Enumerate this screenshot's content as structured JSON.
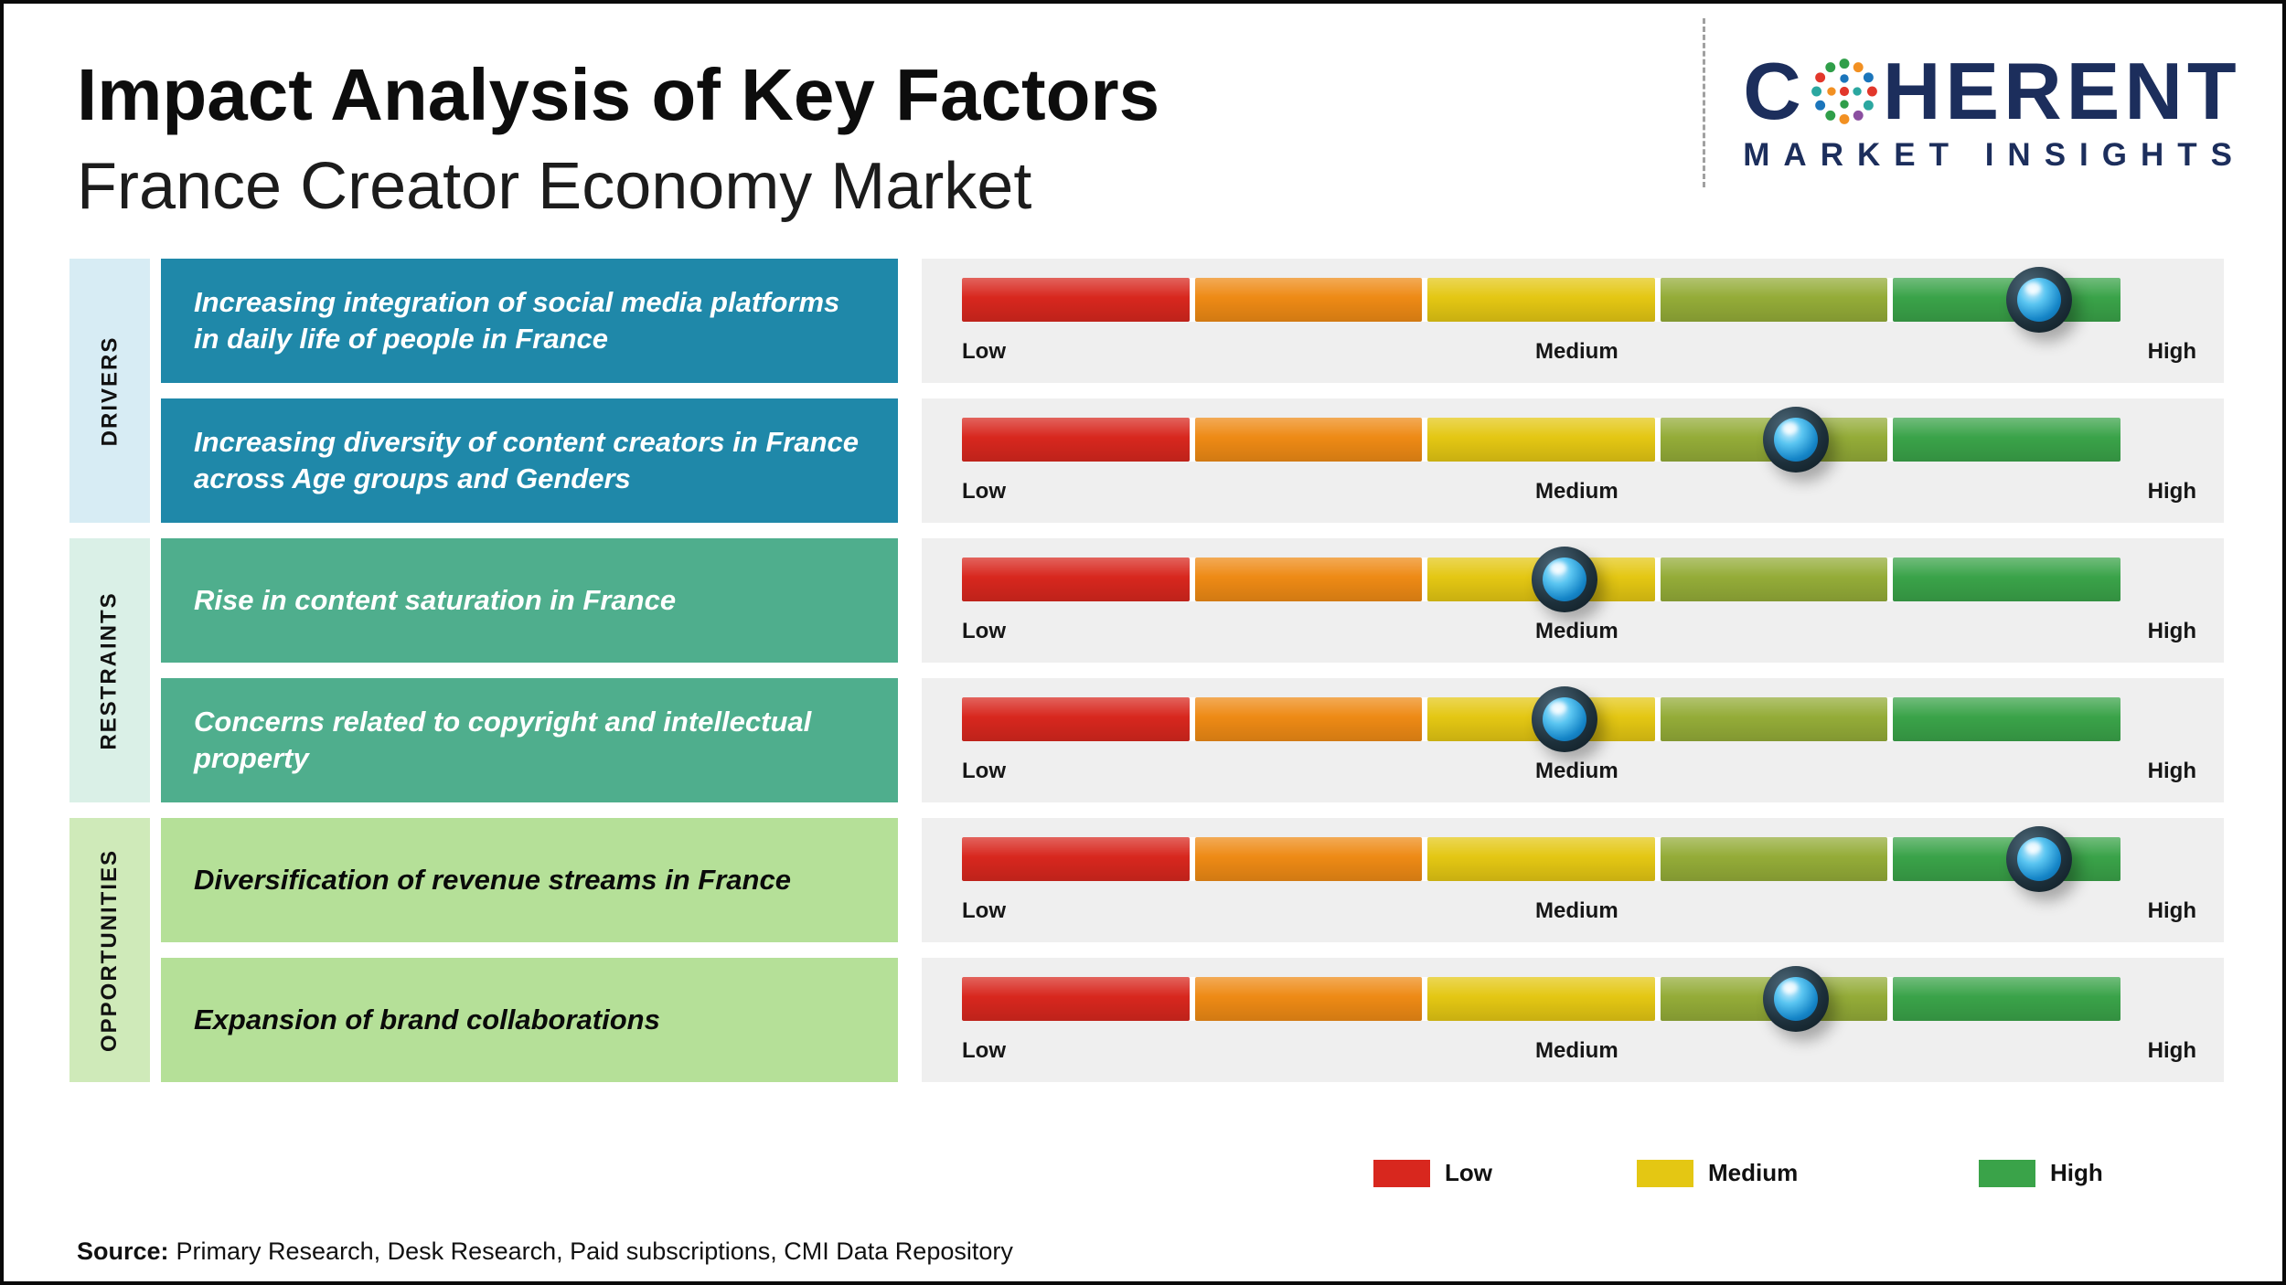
{
  "header": {
    "title": "Impact Analysis of Key Factors",
    "subtitle": "France Creator Economy Market"
  },
  "logo": {
    "prefix": "C",
    "suffix": "HERENT",
    "line2": "MARKET INSIGHTS",
    "brand_color": "#1c2e5c"
  },
  "groups": [
    {
      "label": "DRIVERS"
    },
    {
      "label": "RESTRAINTS"
    },
    {
      "label": "OPPORTUNITIES"
    }
  ],
  "rows": [
    {
      "group": "DRIVERS",
      "label": "Increasing integration of social media platforms in daily life of people in France",
      "position": 0.93
    },
    {
      "group": "DRIVERS",
      "label": "Increasing diversity of content creators in France across Age groups and Genders",
      "position": 0.72
    },
    {
      "group": "RESTRAINTS",
      "label": "Rise in content saturation in France",
      "position": 0.52
    },
    {
      "group": "RESTRAINTS",
      "label": "Concerns related to copyright and intellectual property",
      "position": 0.52
    },
    {
      "group": "OPPORTUNITIES",
      "label": "Diversification of revenue streams in France",
      "position": 0.93
    },
    {
      "group": "OPPORTUNITIES",
      "label": "Expansion of brand collaborations",
      "position": 0.72
    }
  ],
  "scale": {
    "low": "Low",
    "medium": "Medium",
    "high": "High",
    "segment_colors": [
      "#d8271e",
      "#ee8a15",
      "#e4c713",
      "#94ac38",
      "#3aa349"
    ]
  },
  "legend": [
    {
      "label": "Low",
      "color": "#d8271e"
    },
    {
      "label": "Medium",
      "color": "#e4c713"
    },
    {
      "label": "High",
      "color": "#3aa349"
    }
  ],
  "source": {
    "label": "Source:",
    "text": "Primary Research, Desk Research, Paid subscriptions, CMI Data Repository"
  },
  "chart_data": {
    "type": "scatter",
    "title": "Impact Analysis of Key Factors",
    "subtitle": "France Creator Economy Market",
    "x_axis": {
      "labels": [
        "Low",
        "Medium",
        "High"
      ],
      "range": [
        0,
        1
      ]
    },
    "series": [
      {
        "name": "DRIVERS",
        "points": [
          {
            "factor": "Increasing integration of social media platforms in daily life of people in France",
            "impact": 0.93,
            "impact_level": "High"
          },
          {
            "factor": "Increasing diversity of content creators in France across Age groups and Genders",
            "impact": 0.72,
            "impact_level": "Medium-High"
          }
        ]
      },
      {
        "name": "RESTRAINTS",
        "points": [
          {
            "factor": "Rise in content saturation in France",
            "impact": 0.52,
            "impact_level": "Medium"
          },
          {
            "factor": "Concerns related to copyright and intellectual property",
            "impact": 0.52,
            "impact_level": "Medium"
          }
        ]
      },
      {
        "name": "OPPORTUNITIES",
        "points": [
          {
            "factor": "Diversification of revenue streams in France",
            "impact": 0.93,
            "impact_level": "High"
          },
          {
            "factor": "Expansion of brand collaborations",
            "impact": 0.72,
            "impact_level": "Medium-High"
          }
        ]
      }
    ],
    "scale_segment_colors": [
      "#d8271e",
      "#ee8a15",
      "#e4c713",
      "#94ac38",
      "#3aa349"
    ],
    "legend": [
      "Low",
      "Medium",
      "High"
    ],
    "legend_position": "bottom",
    "grid": false
  }
}
